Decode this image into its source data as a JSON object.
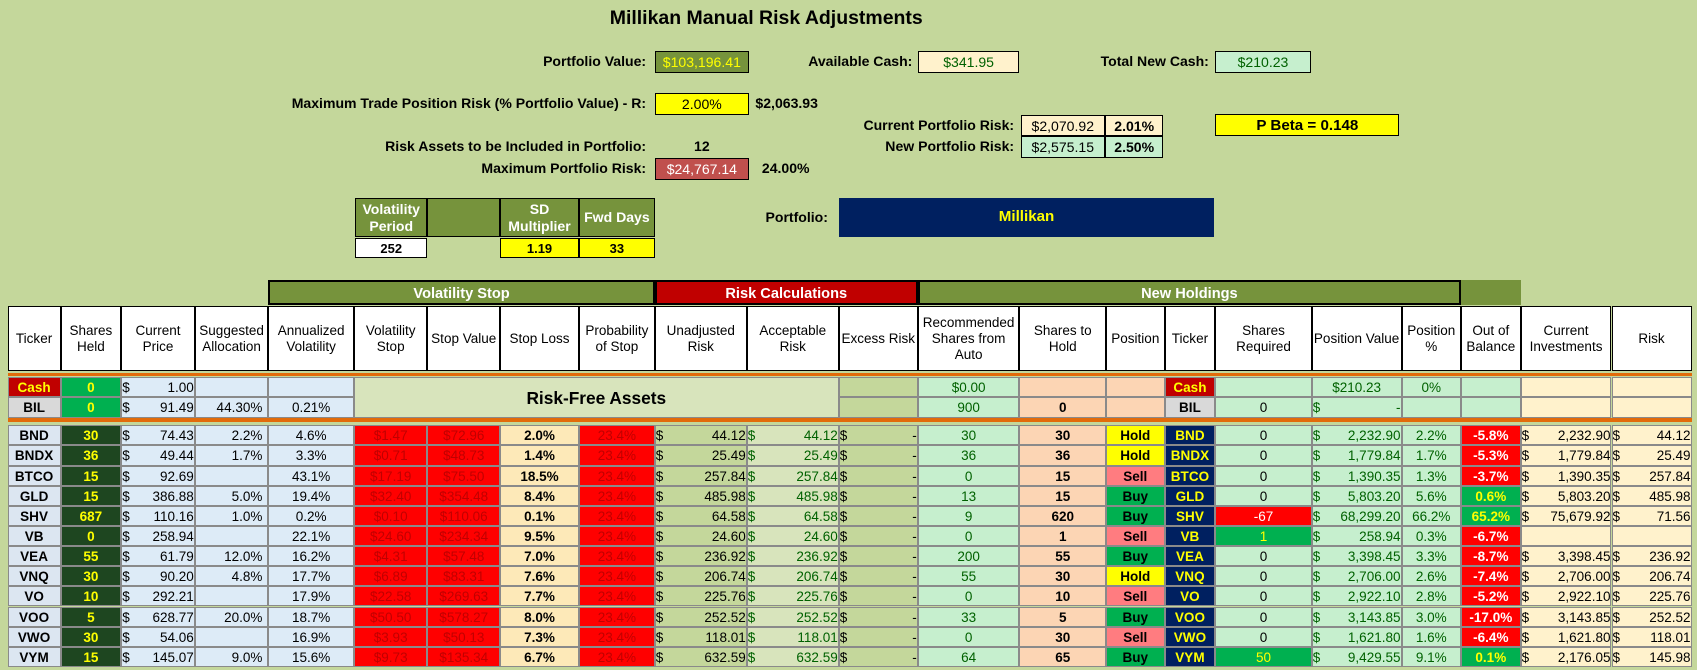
{
  "title": "Millikan Manual Risk Adjustments",
  "summary": [
    {
      "label": "Portfolio Value:",
      "value": "$103,196.41"
    },
    {
      "label": "Available Cash:",
      "value": "$341.95"
    },
    {
      "label": "Total New Cash:",
      "value": "$210.23"
    },
    {
      "label": "Maximum Trade Position Risk (% Portfolio Value) - R:",
      "value": "2.00%",
      "extra": "$2,063.93"
    },
    {
      "label": "Risk Assets to be Included in Portfolio:",
      "value": "12"
    },
    {
      "label": "Maximum Portfolio Risk:",
      "value": "$24,767.14",
      "extra": "24.00%"
    },
    {
      "label": "Current Portfolio Risk:",
      "value": "$2,070.92",
      "extra": "2.01%"
    },
    {
      "label": "New Portfolio Risk:",
      "value": "$2,575.15",
      "extra": "2.50%"
    }
  ],
  "beta": "P Beta = 0.148",
  "parameters": {
    "headers": [
      "Volatility Period",
      "SD Multiplier",
      "Fwd Days"
    ],
    "values": [
      "252",
      "1.19",
      "33"
    ]
  },
  "portfolio": {
    "label": "Portfolio:",
    "value": "Millikan"
  },
  "table": {
    "groups": [
      "Volatility Stop",
      "Risk Calculations",
      "New Holdings"
    ],
    "columns": [
      "Ticker",
      "Shares Held",
      "Current Price",
      "Suggested Allocation",
      "Annualized Volatility",
      "Volatility Stop",
      "Stop Value",
      "Stop Loss",
      "Probability of Stop",
      "Unadjusted Risk",
      "Acceptable Risk",
      "Excess Risk",
      "Recommended Shares from Auto",
      "Shares to Hold",
      "Position",
      "Ticker",
      "Shares Required",
      "Position Value",
      "Position %",
      "Out of Balance",
      "Current Investments",
      "Risk"
    ],
    "risk_free_label": "Risk-Free Assets",
    "position_colors": {
      "Hold": "#ffff00",
      "Buy": "#00b050",
      "Sell": "#ff7c80"
    },
    "rows": [
      [
        "Cash",
        "0",
        "$ 1.00",
        null,
        null,
        null,
        null,
        null,
        null,
        null,
        null,
        null,
        "$0.00",
        null,
        null,
        "Cash",
        null,
        "$210.23",
        "0%",
        null,
        null,
        null
      ],
      [
        "BIL",
        "0",
        "$ 91.49",
        "44.30%",
        "0.21%",
        null,
        null,
        null,
        null,
        null,
        null,
        null,
        "900",
        "0",
        null,
        "BIL",
        "0",
        "$ -",
        null,
        null,
        null,
        null
      ],
      [
        "BND",
        "30",
        "$ 74.43",
        "2.2%",
        "4.6%",
        "$1.47",
        "$72.96",
        "2.0%",
        "23.4%",
        "$ 44.12",
        "$ 44.12",
        "$ -",
        "30",
        "30",
        "Hold",
        "BND",
        "0",
        "$ 2,232.90",
        "2.2%",
        "-5.8%",
        "$ 2,232.90",
        "$ 44.12"
      ],
      [
        "BNDX",
        "36",
        "$ 49.44",
        "1.7%",
        "3.3%",
        "$0.71",
        "$48.73",
        "1.4%",
        "23.4%",
        "$ 25.49",
        "$ 25.49",
        "$ -",
        "36",
        "36",
        "Hold",
        "BNDX",
        "0",
        "$ 1,779.84",
        "1.7%",
        "-5.3%",
        "$ 1,779.84",
        "$ 25.49"
      ],
      [
        "BTCO",
        "15",
        "$ 92.69",
        null,
        "43.1%",
        "$17.19",
        "$75.50",
        "18.5%",
        "23.4%",
        "$ 257.84",
        "$ 257.84",
        "$ -",
        "0",
        "15",
        "Sell",
        "BTCO",
        "0",
        "$ 1,390.35",
        "1.3%",
        "-3.7%",
        "$ 1,390.35",
        "$ 257.84"
      ],
      [
        "GLD",
        "15",
        "$ 386.88",
        "5.0%",
        "19.4%",
        "$32.40",
        "$354.48",
        "8.4%",
        "23.4%",
        "$ 485.98",
        "$ 485.98",
        "$ -",
        "13",
        "15",
        "Buy",
        "GLD",
        "0",
        "$ 5,803.20",
        "5.6%",
        "0.6%",
        "$ 5,803.20",
        "$ 485.98"
      ],
      [
        "SHV",
        "687",
        "$ 110.16",
        "1.0%",
        "0.2%",
        "$0.10",
        "$110.06",
        "0.1%",
        "23.4%",
        "$ 64.58",
        "$ 64.58",
        "$ -",
        "9",
        "620",
        "Buy",
        "SHV",
        "-67",
        "$ 68,299.20",
        "66.2%",
        "65.2%",
        "$ 75,679.92",
        "$ 71.56"
      ],
      [
        "VB",
        "0",
        "$ 258.94",
        null,
        "22.1%",
        "$24.60",
        "$234.34",
        "9.5%",
        "23.4%",
        "$ 24.60",
        "$ 24.60",
        "$ -",
        "0",
        "1",
        "Sell",
        "VB",
        "1",
        "$ 258.94",
        "0.3%",
        "-6.7%",
        null,
        null
      ],
      [
        "VEA",
        "55",
        "$ 61.79",
        "12.0%",
        "16.2%",
        "$4.31",
        "$57.48",
        "7.0%",
        "23.4%",
        "$ 236.92",
        "$ 236.92",
        "$ -",
        "200",
        "55",
        "Buy",
        "VEA",
        "0",
        "$ 3,398.45",
        "3.3%",
        "-8.7%",
        "$ 3,398.45",
        "$ 236.92"
      ],
      [
        "VNQ",
        "30",
        "$ 90.20",
        "4.8%",
        "17.7%",
        "$6.89",
        "$83.31",
        "7.6%",
        "23.4%",
        "$ 206.74",
        "$ 206.74",
        "$ -",
        "55",
        "30",
        "Hold",
        "VNQ",
        "0",
        "$ 2,706.00",
        "2.6%",
        "-7.4%",
        "$ 2,706.00",
        "$ 206.74"
      ],
      [
        "VO",
        "10",
        "$ 292.21",
        null,
        "17.9%",
        "$22.58",
        "$269.63",
        "7.7%",
        "23.4%",
        "$ 225.76",
        "$ 225.76",
        "$ -",
        "0",
        "10",
        "Sell",
        "VO",
        "0",
        "$ 2,922.10",
        "2.8%",
        "-5.2%",
        "$ 2,922.10",
        "$ 225.76"
      ],
      [
        "VOO",
        "5",
        "$ 628.77",
        "20.0%",
        "18.7%",
        "$50.50",
        "$578.27",
        "8.0%",
        "23.4%",
        "$ 252.52",
        "$ 252.52",
        "$ -",
        "33",
        "5",
        "Buy",
        "VOO",
        "0",
        "$ 3,143.85",
        "3.0%",
        "-17.0%",
        "$ 3,143.85",
        "$ 252.52"
      ],
      [
        "VWO",
        "30",
        "$ 54.06",
        null,
        "16.9%",
        "$3.93",
        "$50.13",
        "7.3%",
        "23.4%",
        "$ 118.01",
        "$ 118.01",
        "$ -",
        "0",
        "30",
        "Sell",
        "VWO",
        "0",
        "$ 1,621.80",
        "1.6%",
        "-6.4%",
        "$ 1,621.80",
        "$ 118.01"
      ],
      [
        "VYM",
        "15",
        "$ 145.07",
        "9.0%",
        "15.6%",
        "$9.73",
        "$135.34",
        "6.7%",
        "23.4%",
        "$ 632.59",
        "$ 632.59",
        "$ -",
        "64",
        "65",
        "Buy",
        "VYM",
        "50",
        "$ 9,429.55",
        "9.1%",
        "0.1%",
        "$ 2,176.05",
        "$ 145.98"
      ]
    ]
  }
}
